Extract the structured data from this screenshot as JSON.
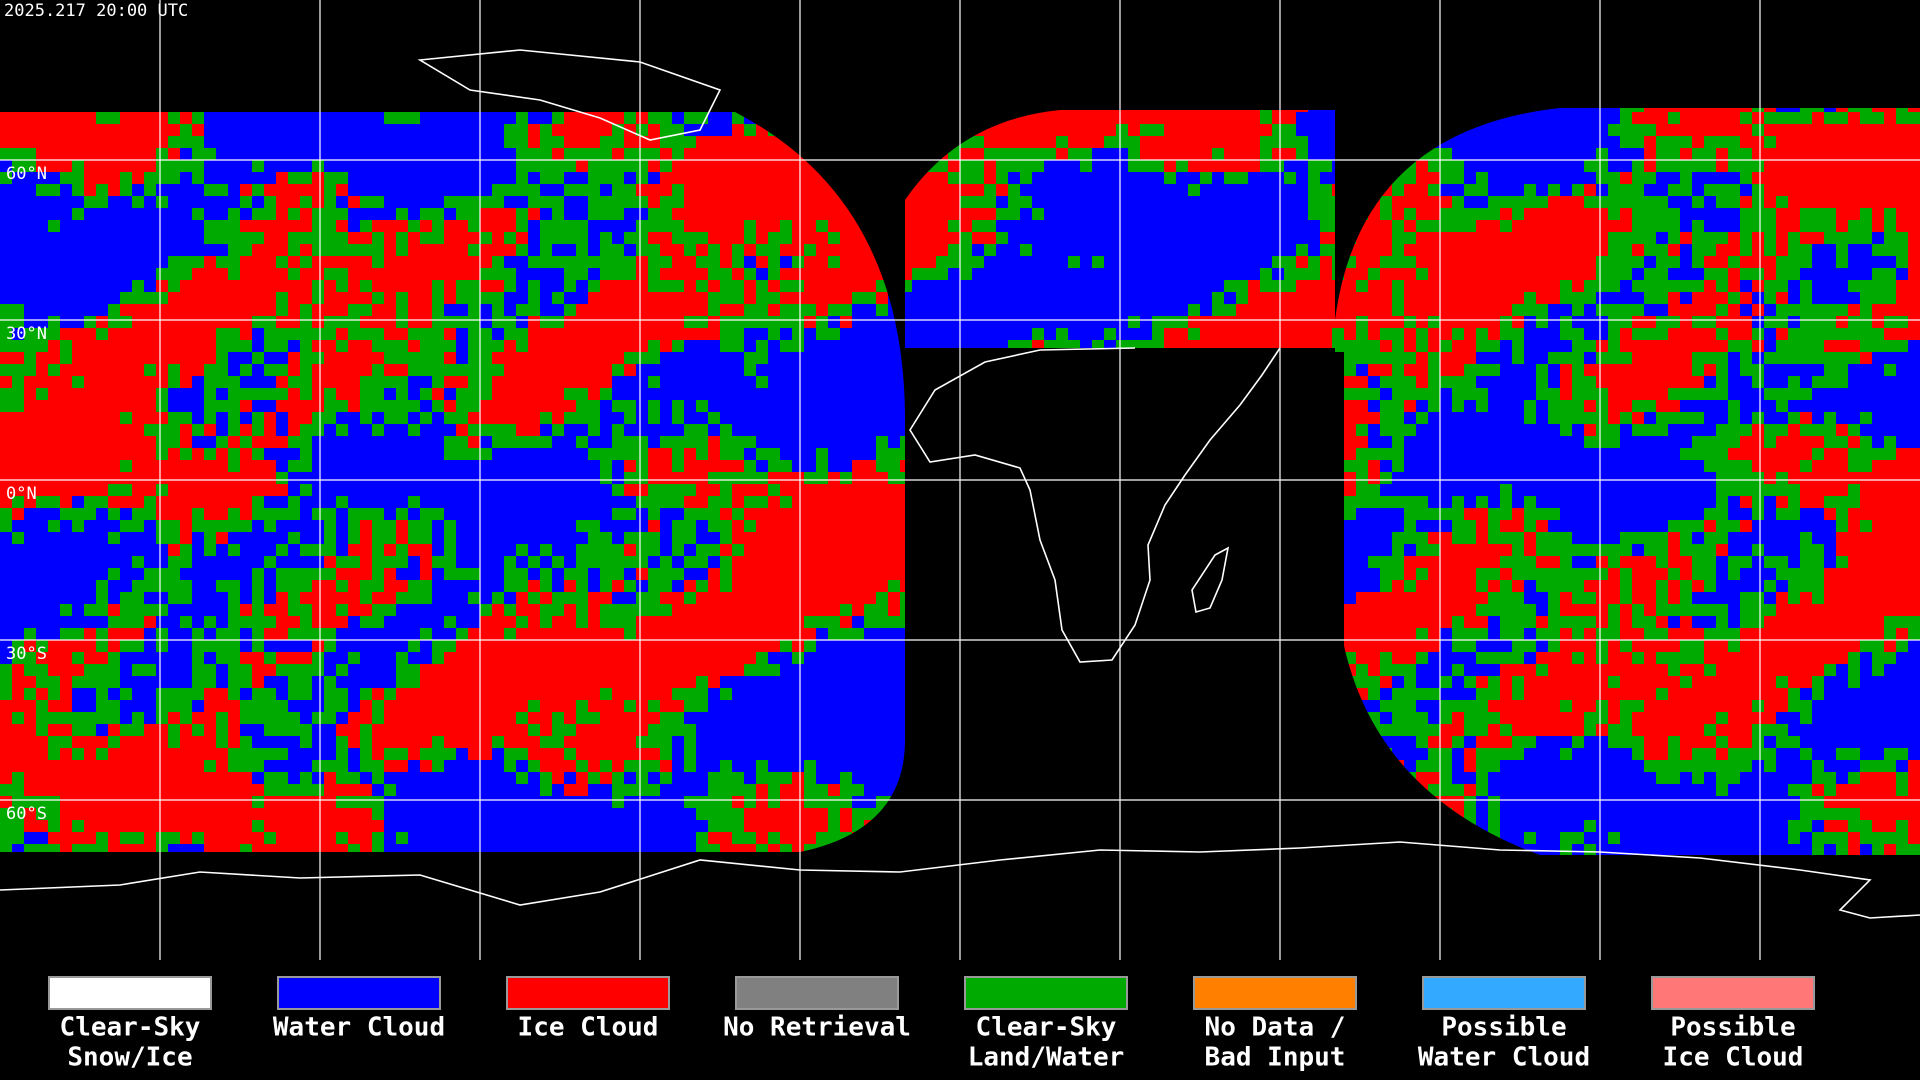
{
  "header": {
    "title": "2025.217 20:00 UTC"
  },
  "latitude_labels": [
    "60°N",
    "30°N",
    "0°N",
    "30°S",
    "60°S"
  ],
  "legend": [
    {
      "lines": [
        "Clear-Sky",
        "Snow/Ice"
      ],
      "color": "#ffffff"
    },
    {
      "lines": [
        "Water Cloud"
      ],
      "color": "#0000ff"
    },
    {
      "lines": [
        "Ice Cloud"
      ],
      "color": "#ff0000"
    },
    {
      "lines": [
        "No Retrieval"
      ],
      "color": "#808080"
    },
    {
      "lines": [
        "Clear-Sky",
        "Land/Water"
      ],
      "color": "#00aa00"
    },
    {
      "lines": [
        "No Data /",
        "Bad Input"
      ],
      "color": "#ff8000"
    },
    {
      "lines": [
        "Possible",
        "Water Cloud"
      ],
      "color": "#33aaff"
    },
    {
      "lines": [
        "Possible",
        "Ice Cloud"
      ],
      "color": "#ff7777"
    }
  ]
}
